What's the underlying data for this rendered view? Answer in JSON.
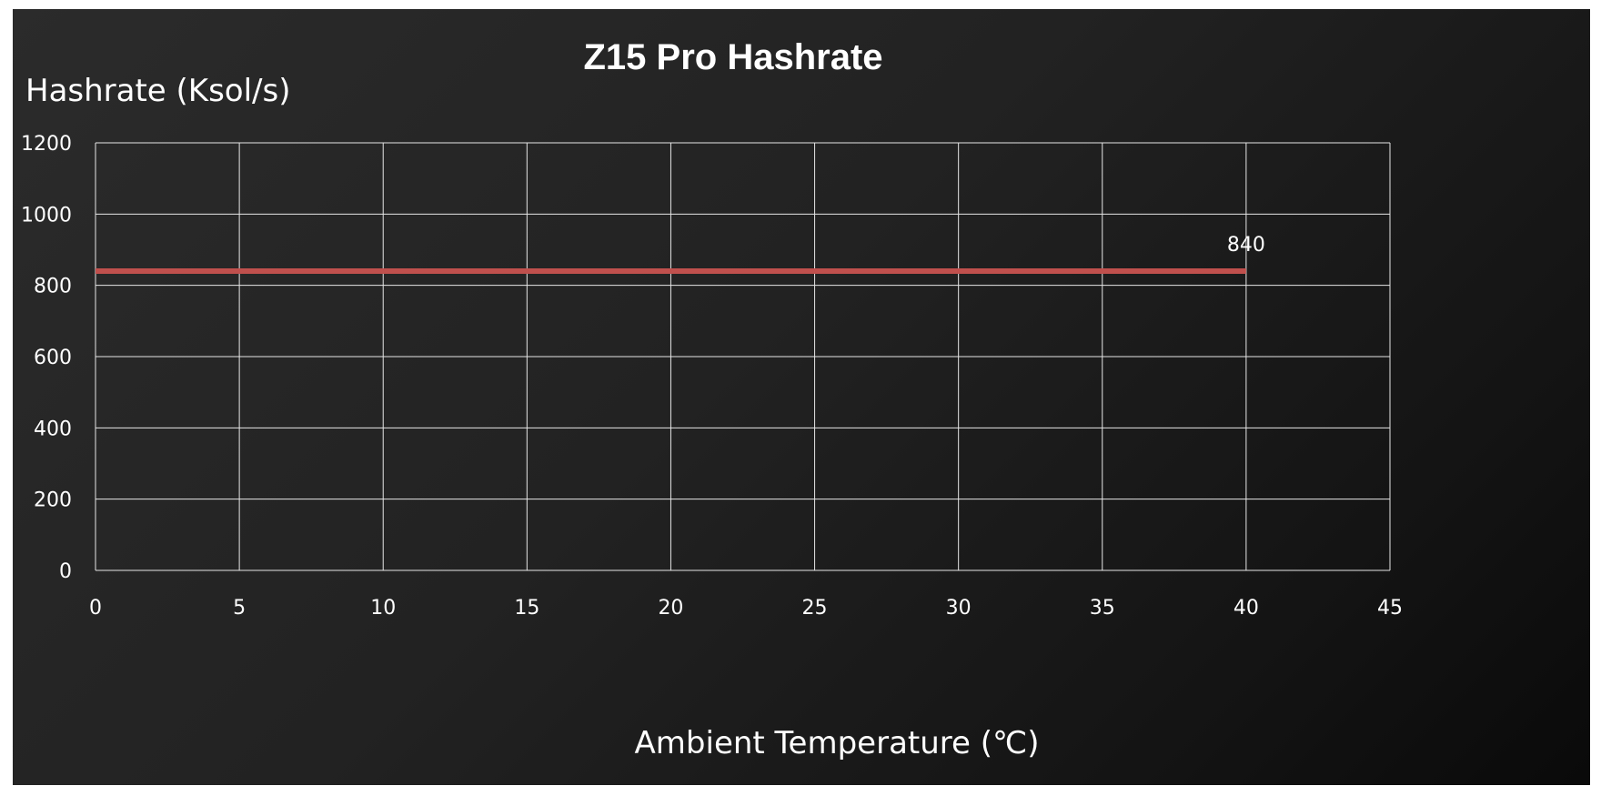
{
  "chart_data": {
    "type": "line",
    "title": "Z15 Pro Hashrate",
    "xlabel": "Ambient Temperature (℃)",
    "ylabel": "Hashrate (Ksol/s)",
    "xlim": [
      0,
      45
    ],
    "ylim": [
      0,
      1200
    ],
    "xticks": [
      0,
      5,
      10,
      15,
      20,
      25,
      30,
      35,
      40,
      45
    ],
    "yticks": [
      0,
      200,
      400,
      600,
      800,
      1000,
      1200
    ],
    "grid": true,
    "legend": "none",
    "series": [
      {
        "x": [
          0,
          40
        ],
        "y": [
          840,
          840
        ],
        "color": "#c0504d",
        "data_labels": [
          {
            "x": 40,
            "y": 840,
            "text": "840"
          }
        ]
      }
    ]
  }
}
